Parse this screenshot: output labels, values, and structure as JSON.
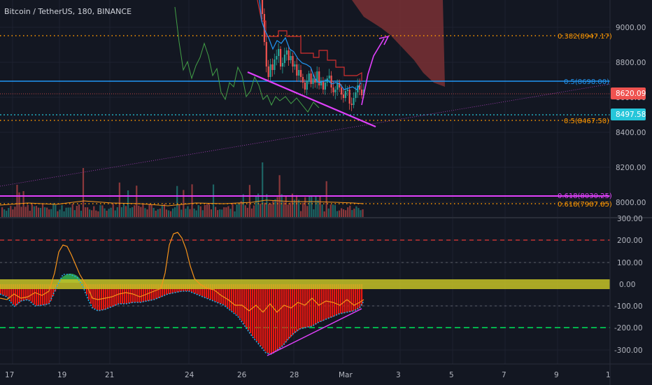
{
  "header": {
    "title": "Bitcoin / TetherUS, 180, BINANCE"
  },
  "colors": {
    "bg": "#131722",
    "grid": "#1e2230",
    "axis_text": "#b2b5be",
    "candle_up": "#26a69a",
    "candle_down": "#ef5350",
    "conversion": "#2196f3",
    "base": "#d32f2f",
    "lagging": "#43a047",
    "cloud": "#7a3034",
    "level_blue": "#2196f3",
    "level_orange": "#ff9800",
    "trend_pink": "#e040fb",
    "zero_band": "#c6c226",
    "histogram": "#e8160f",
    "osc_line": "#f7931a",
    "signal_line": "#26a9e0",
    "level_200": "#e53935",
    "level_m200": "#00c853",
    "price_tag": "#ef5350",
    "support_tag": "#26c6da"
  },
  "chart_data": [
    {
      "type": "candlestick",
      "title": "Bitcoin / TetherUS, 180, BINANCE",
      "price_axis": {
        "ticks": [
          "9000.00",
          "8800.00",
          "8600.00",
          "8400.00",
          "8200.00",
          "8000.00"
        ]
      },
      "x_ticks": [
        "17",
        "19",
        "21",
        "24",
        "26",
        "28",
        "Mar",
        "3",
        "5",
        "7",
        "9",
        "1"
      ],
      "overlay_indicators": [
        "Ichimoku conversion line",
        "Ichimoku base line",
        "Ichimoku lagging span",
        "Ichimoku cloud",
        "volume"
      ],
      "levels": [
        {
          "label": "0.382(8947.17)",
          "value": 8947.17,
          "style": "dotted",
          "color": "orange"
        },
        {
          "label": "0.5(8698.00)",
          "value": 8698.0,
          "style": "solid",
          "color": "blue"
        },
        {
          "label": "0.5(8467.50)",
          "value": 8467.5,
          "style": "dotted",
          "color": "orange"
        },
        {
          "label": "0.618(8030.25)",
          "value": 8030.25,
          "style": "solid",
          "color": "purple"
        },
        {
          "label": "0.618(7987.85)",
          "value": 7987.85,
          "style": "dotted",
          "color": "orange"
        }
      ],
      "price_tags": [
        {
          "label": "8620.09",
          "value": 8620.09
        },
        {
          "label": "8497.58",
          "value": 8497.58
        }
      ],
      "annotations": [
        "falling support trendline",
        "projected move up to 0.382 level"
      ],
      "last_price": 8620.09
    },
    {
      "type": "area",
      "title": "",
      "y_ticks": [
        "300.00",
        "200.00",
        "100.00",
        "0.00",
        "-100.00",
        "-200.00",
        "-300.00"
      ],
      "ylim": [
        -300,
        300
      ],
      "reference_levels": [
        200,
        100,
        0,
        -100,
        -200
      ],
      "annotations": [
        "rising trendline on oscillator lows"
      ],
      "min_value": -320
    }
  ]
}
